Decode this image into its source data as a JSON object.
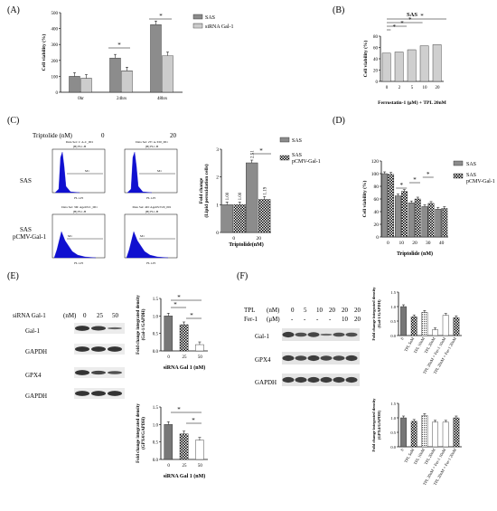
{
  "panel_labels": {
    "A": "(A)",
    "B": "(B)",
    "C": "(C)",
    "D": "(D)",
    "E": "(E)",
    "F": "(F)"
  },
  "colors": {
    "solid": "#8c8c8c",
    "hatch": "#000000",
    "flow_fill": "#1010d0",
    "blot": "#2a2a2a"
  },
  "panelC": {
    "header_left": "Triptolide (nM)",
    "header_0": "0",
    "header_20": "20",
    "row1": "SAS",
    "row2a": "SAS",
    "row2b": "pCMV-Gal-1",
    "hist_titles": [
      "Data Set: 1: A-C_001",
      "Data Set: 2V: A-T20_001",
      "Data Set: 3D: AgeltS:C_001",
      "Data Set: 4D: AgeltS:T20_001"
    ],
    "hist_subtitle": "[H] FL1-H",
    "x_axis": "FL1-H",
    "gate": "M1"
  },
  "panelE": {
    "header": "siRNA Gal-1",
    "unit": "(nM)",
    "doses": [
      "0",
      "25",
      "50"
    ],
    "bands": [
      "Gal-1",
      "GAPDH",
      "GPX4",
      "GAPDH"
    ]
  },
  "panelF": {
    "tpl_label": "TPL",
    "tpl_unit": "(nM)",
    "tpl_doses": [
      "0",
      "5",
      "10",
      "20",
      "20",
      "20"
    ],
    "fer_label": "Fer-1",
    "fer_unit": "(μM)",
    "fer_doses": [
      "-",
      "-",
      "-",
      "-",
      "10",
      "20"
    ],
    "bands": [
      "Gal-1",
      "GPX4",
      "GAPDH"
    ]
  },
  "chart_data": [
    {
      "panel": "A",
      "type": "bar",
      "ylabel": "Cell viability (%)",
      "categories": [
        "0hr",
        "24hrs",
        "48hrs"
      ],
      "yticks": [
        0,
        100,
        200,
        300,
        400,
        500
      ],
      "ylim": [
        0,
        500
      ],
      "series": [
        {
          "name": "SAS",
          "values": [
            100,
            215,
            425
          ]
        },
        {
          "name": "siRNA Gal-1",
          "values": [
            88,
            135,
            230
          ]
        }
      ],
      "annotations": [
        "*",
        "*"
      ]
    },
    {
      "panel": "B",
      "type": "bar",
      "title": "SAS",
      "xlabel": "Ferrostatin-1 (μM) + TPL 20nM",
      "ylabel": "Cell viability (%)",
      "categories": [
        "0",
        "2",
        "5",
        "10",
        "20"
      ],
      "yticks": [
        0,
        20,
        40,
        60,
        80
      ],
      "ylim": [
        0,
        80
      ],
      "values": [
        50,
        52,
        56,
        63,
        65
      ],
      "annotations": [
        "*",
        "*",
        "*",
        "*"
      ]
    },
    {
      "panel": "C",
      "type": "bar",
      "xlabel": "Triptolide(nM)",
      "ylabel": "Fold change",
      "ylabel2": "(Lipid peroxidation cells)",
      "categories": [
        "0",
        "20"
      ],
      "yticks": [
        0,
        1,
        2,
        3
      ],
      "ylim": [
        0,
        3
      ],
      "series": [
        {
          "name": "SAS",
          "values": [
            1.0,
            2.51
          ]
        },
        {
          "name": "SAS pCMV-Gal-1",
          "values": [
            1.0,
            1.19
          ]
        }
      ],
      "data_labels": [
        "1.00",
        "1.00",
        "2.51",
        "1.19"
      ],
      "annotations": [
        "*"
      ]
    },
    {
      "panel": "D",
      "type": "bar",
      "xlabel": "Triptolide (nM)",
      "ylabel": "Cell viability (%)",
      "categories": [
        "0",
        "10",
        "20",
        "30",
        "40"
      ],
      "yticks": [
        0,
        20,
        40,
        60,
        80,
        100,
        120
      ],
      "ylim": [
        0,
        120
      ],
      "series": [
        {
          "name": "SAS",
          "values": [
            100,
            65,
            54,
            48,
            44
          ]
        },
        {
          "name": "SAS pCMV-Gal-1",
          "values": [
            99,
            72,
            60,
            53,
            45
          ]
        }
      ],
      "annotations": [
        "*",
        "*",
        "*"
      ]
    },
    {
      "panel": "E-top",
      "type": "bar",
      "xlabel": "siRNA Gal 1 (nM)",
      "ylabel": "Fold change integrated density",
      "ylabel2": "(Gal-1/GAPDH)",
      "categories": [
        "0",
        "25",
        "50"
      ],
      "yticks": [
        0.0,
        0.5,
        1.0,
        1.5
      ],
      "ylim": [
        0,
        1.5
      ],
      "values": [
        1.0,
        0.75,
        0.18
      ],
      "annotations": [
        "*",
        "*",
        "*"
      ]
    },
    {
      "panel": "E-bottom",
      "type": "bar",
      "xlabel": "siRNA Gal 1 (nM)",
      "ylabel": "Fold change integrated density",
      "ylabel2": "(GPX4/GAPDH)",
      "categories": [
        "0",
        "25",
        "50"
      ],
      "yticks": [
        0.0,
        0.5,
        1.0,
        1.5
      ],
      "ylim": [
        0,
        1.5
      ],
      "values": [
        1.0,
        0.73,
        0.55
      ],
      "annotations": [
        "*",
        "*"
      ]
    },
    {
      "panel": "F-top",
      "type": "bar",
      "ylabel": "Fold change integrated density",
      "ylabel2": "(Gal-1/GAPDH)",
      "categories": [
        "0",
        "TPL 5nM",
        "TPL 10nM",
        "TPL 20nM",
        "TPL 20nM + Fer-1 10nM",
        "TPL 20nM + Fer-1 20nM"
      ],
      "yticks": [
        0.0,
        0.5,
        1.0,
        1.5
      ],
      "ylim": [
        0,
        1.5
      ],
      "values": [
        1.0,
        0.65,
        0.8,
        0.2,
        0.7,
        0.62
      ]
    },
    {
      "panel": "F-bottom",
      "type": "bar",
      "ylabel": "Fold change integrated density",
      "ylabel2": "(GPX4/GAPDH)",
      "categories": [
        "0",
        "TPL 5nM",
        "TPL 10nM",
        "TPL 20nM",
        "TPL 20nM + Fer-1 10nM",
        "TPL 20nM + Fer-1 20nM"
      ],
      "yticks": [
        0.0,
        0.5,
        1.0,
        1.5
      ],
      "ylim": [
        0,
        1.5
      ],
      "values": [
        1.0,
        0.88,
        1.08,
        0.85,
        0.85,
        1.0
      ]
    }
  ]
}
